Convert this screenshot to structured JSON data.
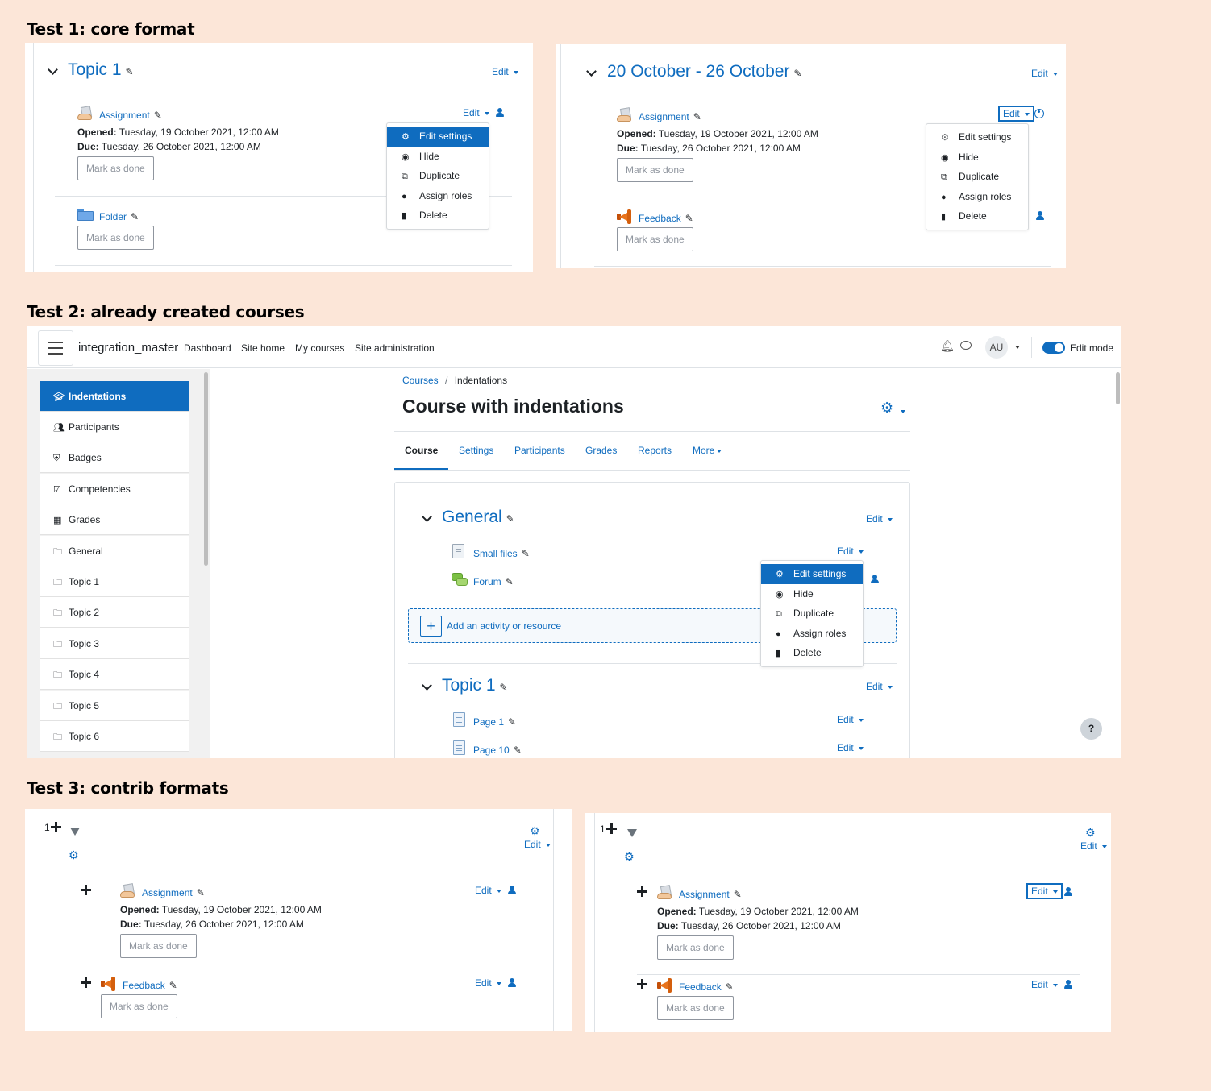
{
  "headings": {
    "test1": "Test 1: core format",
    "test2": "Test 2: already created courses",
    "test3": "Test 3: contrib formats"
  },
  "common": {
    "edit": "Edit",
    "mark_as_done": "Mark as done",
    "opened_label": "Opened:",
    "opened_value": "Tuesday, 19 October 2021, 12:00 AM",
    "due_label": "Due:",
    "due_value": "Tuesday, 26 October 2021, 12:00 AM",
    "menu": [
      "Edit settings",
      "Hide",
      "Duplicate",
      "Assign roles",
      "Delete"
    ],
    "menu_icons": [
      "gear-icon",
      "eye-icon",
      "copy-icon",
      "user-circle-icon",
      "trash-icon"
    ]
  },
  "test1": {
    "left": {
      "section_title": "Topic 1",
      "mod1": "Assignment",
      "mod2": "Folder"
    },
    "right": {
      "section_title": "20 October - 26 October",
      "mod1": "Assignment",
      "mod2": "Feedback"
    }
  },
  "test2": {
    "site_name": "integration_master",
    "nav": [
      "Dashboard",
      "Site home",
      "My courses",
      "Site administration"
    ],
    "avatar": "AU",
    "edit_mode": "Edit mode",
    "edit_mode_on": true,
    "breadcrumb": [
      "Courses",
      "Indentations"
    ],
    "course_title": "Course with indentations",
    "tabs": [
      "Course",
      "Settings",
      "Participants",
      "Grades",
      "Reports",
      "More"
    ],
    "drawer": [
      {
        "label": "Indentations",
        "icon": "graduation-cap-icon",
        "active": true
      },
      {
        "label": "Participants",
        "icon": "users-icon"
      },
      {
        "label": "Badges",
        "icon": "shield-icon"
      },
      {
        "label": "Competencies",
        "icon": "check-square-icon"
      },
      {
        "label": "Grades",
        "icon": "table-icon"
      },
      {
        "label": "General",
        "icon": "folder-icon"
      },
      {
        "label": "Topic 1",
        "icon": "folder-icon"
      },
      {
        "label": "Topic 2",
        "icon": "folder-icon"
      },
      {
        "label": "Topic 3",
        "icon": "folder-icon"
      },
      {
        "label": "Topic 4",
        "icon": "folder-icon"
      },
      {
        "label": "Topic 5",
        "icon": "folder-icon"
      },
      {
        "label": "Topic 6",
        "icon": "folder-icon"
      }
    ],
    "section1": {
      "title": "General",
      "mod1": "Small files",
      "mod2": "Forum"
    },
    "add_activity": "Add an activity or resource",
    "section2": {
      "title": "Topic 1",
      "mod1": "Page 1",
      "mod2": "Page 10"
    },
    "help": "?"
  },
  "test3": {
    "section_number": "1",
    "mod1": "Assignment",
    "mod2": "Feedback"
  }
}
